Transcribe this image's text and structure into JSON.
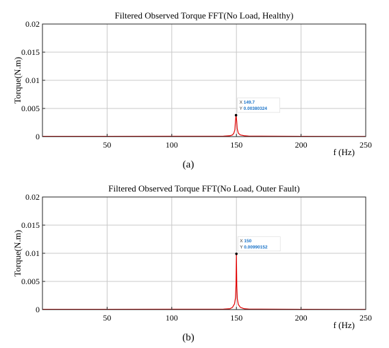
{
  "chart_data": [
    {
      "type": "line",
      "title": "Filtered Observed Torque FFT(No Load, Healthy)",
      "xlabel": "f (Hz)",
      "ylabel": "Torque(N.m)",
      "xlim": [
        0,
        250
      ],
      "ylim": [
        0,
        0.02
      ],
      "xticks": [
        50,
        100,
        150,
        200,
        250
      ],
      "yticks": [
        0,
        0.005,
        0.01,
        0.015,
        0.02
      ],
      "xtick_labels": [
        "50",
        "100",
        "150",
        "200",
        "250"
      ],
      "ytick_labels": [
        "0",
        "0.005",
        "0.01",
        "0.015",
        "0.02"
      ],
      "grid": true,
      "line_color": "#e00000",
      "series": [
        {
          "x": [
            0,
            50,
            100,
            140,
            145,
            147,
            148,
            148.8,
            149.2,
            149.7,
            150.2,
            150.6,
            151.5,
            153,
            156,
            160,
            200,
            250
          ],
          "values": [
            5e-05,
            5e-05,
            6e-05,
            8e-05,
            0.00015,
            0.0003,
            0.0006,
            0.0012,
            0.0026,
            0.00380324,
            0.0028,
            0.0014,
            0.0006,
            0.0003,
            0.00015,
            8e-05,
            5e-05,
            3e-05
          ]
        }
      ],
      "datatip": {
        "x_label": "X",
        "x_value": "149.7",
        "y_label": "Y",
        "y_value": "0.00380324",
        "point": [
          149.7,
          0.00380324
        ]
      },
      "caption": "(a)"
    },
    {
      "type": "line",
      "title": "Filtered Observed Torque FFT(No Load, Outer Fault)",
      "xlabel": "f (Hz)",
      "ylabel": "Torque(N.m)",
      "xlim": [
        0,
        250
      ],
      "ylim": [
        0,
        0.02
      ],
      "xticks": [
        50,
        100,
        150,
        200,
        250
      ],
      "yticks": [
        0,
        0.005,
        0.01,
        0.015,
        0.02
      ],
      "xtick_labels": [
        "50",
        "100",
        "150",
        "200",
        "250"
      ],
      "ytick_labels": [
        "0",
        "0.005",
        "0.01",
        "0.015",
        "0.02"
      ],
      "grid": true,
      "line_color": "#e00000",
      "series": [
        {
          "x": [
            0,
            50,
            100,
            140,
            145,
            147,
            148.5,
            149.3,
            149.7,
            150,
            150.3,
            150.7,
            151.5,
            153,
            156,
            160,
            200,
            250
          ],
          "values": [
            5e-05,
            5e-05,
            6e-05,
            8e-05,
            0.00015,
            0.0004,
            0.001,
            0.0021,
            0.0045,
            0.00990152,
            0.0042,
            0.0019,
            0.0009,
            0.0004,
            0.00015,
            8e-05,
            5e-05,
            3e-05
          ]
        }
      ],
      "datatip": {
        "x_label": "X",
        "x_value": "150",
        "y_label": "Y",
        "y_value": "0.00990152",
        "point": [
          150,
          0.00990152
        ]
      },
      "caption": "(b)"
    }
  ]
}
